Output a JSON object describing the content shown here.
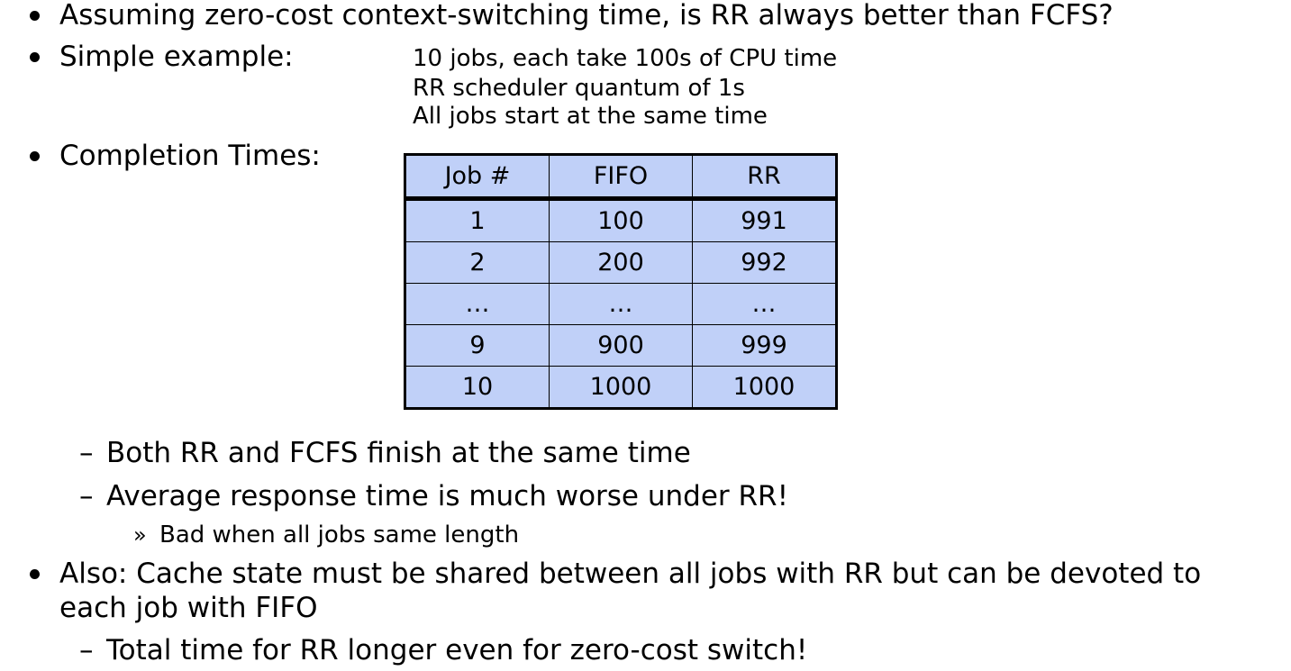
{
  "bullets": {
    "question": "Assuming zero-cost context-switching time, is RR always better than FCFS?",
    "example_label": "Simple example:",
    "example_lines": [
      "10 jobs, each take 100s of CPU time",
      "RR scheduler quantum of 1s",
      "All jobs start at the same time"
    ],
    "completion_label": "Completion Times:",
    "sub_same_time": "Both RR and FCFS finish at the same time",
    "sub_avg_worse": "Average response time is much worse under RR!",
    "subsub_bad": "Bad when all jobs same length",
    "cache_line1": "Also: Cache state must be shared between all jobs with RR but can be devoted to",
    "cache_line2": "each job with FIFO",
    "sub_total_time": "Total time for RR longer even for zero-cost switch!"
  },
  "glyphs": {
    "dash": "–",
    "chevron": "»"
  },
  "table": {
    "headers": [
      "Job #",
      "FIFO",
      "RR"
    ],
    "rows": [
      [
        "1",
        "100",
        "991"
      ],
      [
        "2",
        "200",
        "992"
      ],
      [
        "…",
        "…",
        "…"
      ],
      [
        "9",
        "900",
        "999"
      ],
      [
        "10",
        "1000",
        "1000"
      ]
    ]
  },
  "colors": {
    "table_fill": "#c0d0f8"
  }
}
